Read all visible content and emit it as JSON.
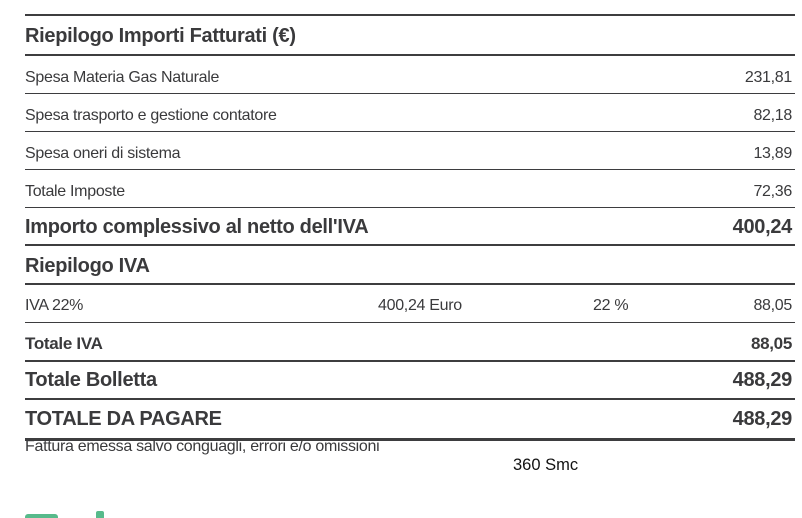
{
  "colors": {
    "text": "#3a3a3c",
    "rule": "#3d3d3f",
    "accent_green": "#57ba8b",
    "background": "#ffffff"
  },
  "summary_table": {
    "title": "Riepilogo Importi Fatturati (€)",
    "rows": [
      {
        "label": "Spesa Materia Gas Naturale",
        "amount": "231,81"
      },
      {
        "label": "Spesa trasporto e gestione contatore",
        "amount": "82,18"
      },
      {
        "label": "Spesa oneri di sistema",
        "amount": "13,89"
      },
      {
        "label": "Totale Imposte",
        "amount": "72,36"
      }
    ],
    "net_total": {
      "label": "Importo complessivo al netto dell'IVA",
      "amount": "400,24"
    }
  },
  "vat_section": {
    "title": "Riepilogo IVA",
    "detail_row": {
      "label": "IVA 22%",
      "base": "400,24 Euro",
      "rate": "22 %",
      "amount": "88,05"
    },
    "vat_total": {
      "label": "Totale IVA",
      "amount": "88,05"
    },
    "bill_total": {
      "label": "Totale Bolletta",
      "amount": "488,29"
    },
    "amount_due": {
      "label": "TOTALE DA PAGARE",
      "amount": "488,29"
    }
  },
  "footer": {
    "disclaimer": "Fattura emessa salvo conguagli, errori e/o omissioni",
    "annotation": "360 Smc"
  }
}
